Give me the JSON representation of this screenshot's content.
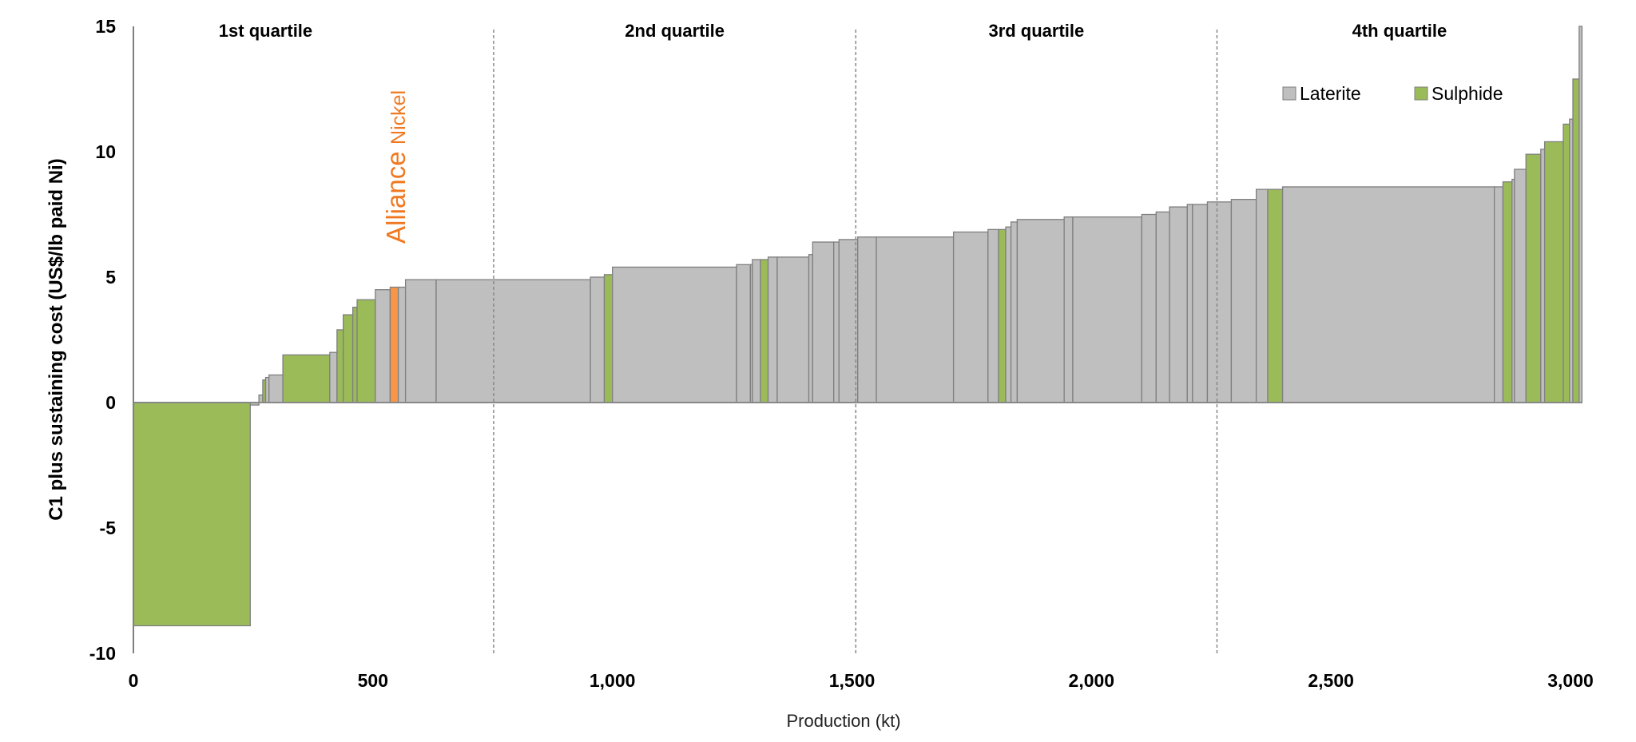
{
  "chart_data": {
    "type": "bar",
    "subtype": "cost-curve (variable-width bars)",
    "xlabel": "Production (kt)",
    "ylabel": "C1 plus sustaining cost (US$/lb paid Ni)",
    "xlim": [
      0,
      3000
    ],
    "ylim": [
      -10,
      15
    ],
    "xticks": [
      {
        "v": 0,
        "label": "0"
      },
      {
        "v": 500,
        "label": "500"
      },
      {
        "v": 1000,
        "label": "1,000"
      },
      {
        "v": 1500,
        "label": "1,500"
      },
      {
        "v": 2000,
        "label": "2,000"
      },
      {
        "v": 2500,
        "label": "2,500"
      },
      {
        "v": 3000,
        "label": "3,000"
      }
    ],
    "yticks": [
      {
        "v": 15,
        "label": "15"
      },
      {
        "v": 10,
        "label": "10"
      },
      {
        "v": 5,
        "label": "5"
      },
      {
        "v": 0,
        "label": "0"
      },
      {
        "v": -5,
        "label": "-5"
      },
      {
        "v": -10,
        "label": "-10"
      }
    ],
    "grid": false,
    "legend": {
      "position": "top-right",
      "entries": [
        {
          "name": "Laterite",
          "color": "#BFBFBF"
        },
        {
          "name": "Sulphide",
          "color": "#9BBB59"
        }
      ]
    },
    "colors": {
      "Laterite": "#BFBFBF",
      "Sulphide": "#9BBB59",
      "Alliance": "#F79646",
      "stroke": "#7F7F7F"
    },
    "quartiles": [
      {
        "label": "1st quartile",
        "start": 0,
        "end": 752
      },
      {
        "label": "2nd quartile",
        "start": 752,
        "end": 1508
      },
      {
        "label": "3rd quartile",
        "start": 1508,
        "end": 2262
      },
      {
        "label": "4th quartile",
        "start": 2262,
        "end": 3024
      }
    ],
    "annotation": {
      "text1": "Alliance",
      "text2": "Nickel",
      "at_kt": 545,
      "color": "#F79646"
    },
    "bar_columns": [
      "start_kt",
      "end_kt",
      "cost",
      "type"
    ],
    "bars": [
      [
        0,
        244,
        -8.9,
        "Sulphide"
      ],
      [
        244,
        262,
        -0.1,
        "Laterite"
      ],
      [
        262,
        270,
        0.3,
        "Laterite"
      ],
      [
        270,
        276,
        0.9,
        "Sulphide"
      ],
      [
        276,
        283,
        1.0,
        "Laterite"
      ],
      [
        283,
        312,
        1.1,
        "Laterite"
      ],
      [
        312,
        410,
        1.9,
        "Sulphide"
      ],
      [
        410,
        425,
        2.0,
        "Laterite"
      ],
      [
        425,
        438,
        2.9,
        "Sulphide"
      ],
      [
        438,
        458,
        3.5,
        "Sulphide"
      ],
      [
        458,
        467,
        3.8,
        "Sulphide"
      ],
      [
        467,
        505,
        4.1,
        "Sulphide"
      ],
      [
        505,
        536,
        4.5,
        "Laterite"
      ],
      [
        536,
        553,
        4.6,
        "Alliance"
      ],
      [
        553,
        568,
        4.6,
        "Laterite"
      ],
      [
        568,
        632,
        4.9,
        "Laterite"
      ],
      [
        632,
        954,
        4.9,
        "Laterite"
      ],
      [
        954,
        983,
        5.0,
        "Laterite"
      ],
      [
        983,
        1000,
        5.1,
        "Sulphide"
      ],
      [
        1000,
        1259,
        5.4,
        "Laterite"
      ],
      [
        1259,
        1288,
        5.5,
        "Laterite"
      ],
      [
        1288,
        1292,
        5.5,
        "Laterite"
      ],
      [
        1292,
        1309,
        5.7,
        "Laterite"
      ],
      [
        1309,
        1325,
        5.7,
        "Sulphide"
      ],
      [
        1325,
        1344,
        5.8,
        "Laterite"
      ],
      [
        1344,
        1410,
        5.8,
        "Laterite"
      ],
      [
        1410,
        1418,
        5.9,
        "Laterite"
      ],
      [
        1418,
        1462,
        6.4,
        "Laterite"
      ],
      [
        1462,
        1473,
        6.4,
        "Laterite"
      ],
      [
        1473,
        1512,
        6.5,
        "Laterite"
      ],
      [
        1512,
        1551,
        6.6,
        "Laterite"
      ],
      [
        1551,
        1712,
        6.6,
        "Laterite"
      ],
      [
        1712,
        1784,
        6.8,
        "Laterite"
      ],
      [
        1784,
        1806,
        6.9,
        "Laterite"
      ],
      [
        1806,
        1821,
        6.9,
        "Sulphide"
      ],
      [
        1821,
        1832,
        7.0,
        "Laterite"
      ],
      [
        1832,
        1845,
        7.2,
        "Laterite"
      ],
      [
        1845,
        1943,
        7.3,
        "Laterite"
      ],
      [
        1943,
        1961,
        7.4,
        "Laterite"
      ],
      [
        1961,
        2105,
        7.4,
        "Laterite"
      ],
      [
        2105,
        2135,
        7.5,
        "Laterite"
      ],
      [
        2135,
        2163,
        7.6,
        "Laterite"
      ],
      [
        2163,
        2200,
        7.8,
        "Laterite"
      ],
      [
        2200,
        2211,
        7.9,
        "Laterite"
      ],
      [
        2211,
        2242,
        7.9,
        "Laterite"
      ],
      [
        2242,
        2292,
        8.0,
        "Laterite"
      ],
      [
        2292,
        2344,
        8.1,
        "Laterite"
      ],
      [
        2344,
        2368,
        8.5,
        "Laterite"
      ],
      [
        2368,
        2399,
        8.5,
        "Sulphide"
      ],
      [
        2399,
        2841,
        8.6,
        "Laterite"
      ],
      [
        2841,
        2859,
        8.6,
        "Laterite"
      ],
      [
        2859,
        2878,
        8.8,
        "Sulphide"
      ],
      [
        2878,
        2883,
        8.9,
        "Laterite"
      ],
      [
        2883,
        2907,
        9.3,
        "Laterite"
      ],
      [
        2907,
        2938,
        9.9,
        "Sulphide"
      ],
      [
        2938,
        2946,
        10.1,
        "Laterite"
      ],
      [
        2946,
        2985,
        10.4,
        "Sulphide"
      ],
      [
        2985,
        2998,
        11.1,
        "Sulphide"
      ],
      [
        2998,
        3005,
        11.3,
        "Laterite"
      ],
      [
        3005,
        3018,
        12.9,
        "Sulphide"
      ],
      [
        3018,
        3024,
        15.0,
        "Laterite"
      ]
    ]
  }
}
